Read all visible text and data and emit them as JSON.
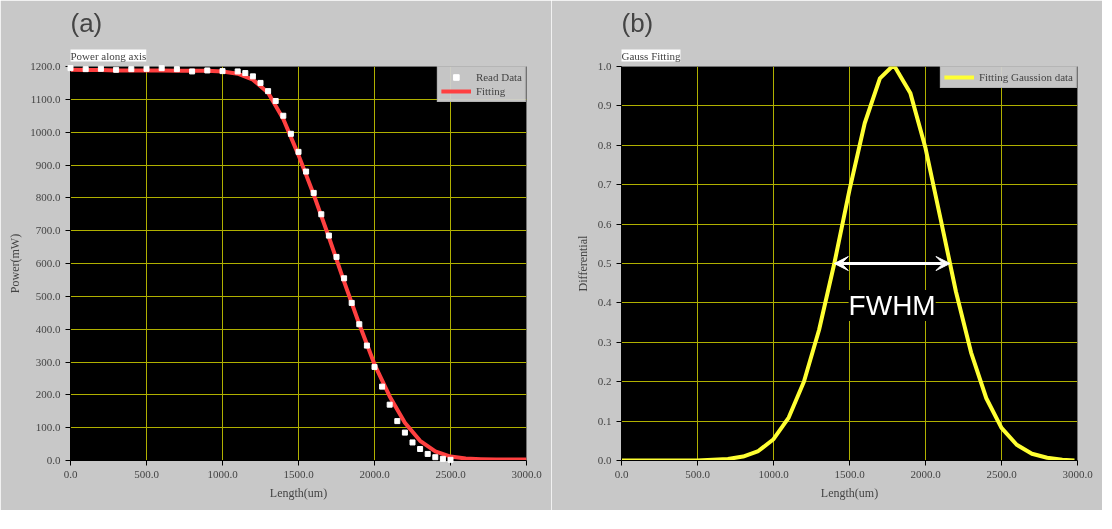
{
  "chart_data": [
    {
      "type": "line",
      "title": "Power along axis",
      "xlabel": "Length(um)",
      "ylabel": "Power(mW)",
      "annotations": [
        "(a)"
      ],
      "xlim": [
        0,
        3000
      ],
      "ylim": [
        0,
        1200
      ],
      "xticks": [
        {
          "value": 0,
          "label": "0.0"
        },
        {
          "value": 500,
          "label": "500.0"
        },
        {
          "value": 1000,
          "label": "1000.0"
        },
        {
          "value": 1500,
          "label": "1500.0"
        },
        {
          "value": 2000,
          "label": "2000.0"
        },
        {
          "value": 2500,
          "label": "2500.0"
        },
        {
          "value": 3000,
          "label": "3000.0"
        }
      ],
      "yticks": [
        {
          "value": 0,
          "label": "0.0"
        },
        {
          "value": 100,
          "label": "100.0"
        },
        {
          "value": 200,
          "label": "200.0"
        },
        {
          "value": 300,
          "label": "300.0"
        },
        {
          "value": 400,
          "label": "400.0"
        },
        {
          "value": 500,
          "label": "500.0"
        },
        {
          "value": 600,
          "label": "600.0"
        },
        {
          "value": 700,
          "label": "700.0"
        },
        {
          "value": 800,
          "label": "800.0"
        },
        {
          "value": 900,
          "label": "900.0"
        },
        {
          "value": 1000,
          "label": "1000.0"
        },
        {
          "value": 1100,
          "label": "1100.0"
        },
        {
          "value": 1200,
          "label": "1200.0"
        }
      ],
      "grid": true,
      "legend": "top right",
      "series": [
        {
          "name": "Read Data",
          "type": "scatter",
          "marker": "square",
          "color": "#ffffff",
          "x": [
            0,
            100,
            200,
            300,
            400,
            500,
            600,
            700,
            800,
            900,
            1000,
            1100,
            1150,
            1200,
            1250,
            1300,
            1350,
            1400,
            1450,
            1500,
            1550,
            1600,
            1650,
            1700,
            1750,
            1800,
            1850,
            1900,
            1950,
            2000,
            2050,
            2100,
            2150,
            2200,
            2250,
            2300,
            2350,
            2400,
            2450,
            2500
          ],
          "values": [
            1195,
            1192,
            1193,
            1190,
            1192,
            1193,
            1195,
            1192,
            1185,
            1188,
            1186,
            1185,
            1180,
            1170,
            1150,
            1125,
            1095,
            1050,
            995,
            940,
            880,
            815,
            750,
            685,
            620,
            555,
            480,
            415,
            350,
            285,
            225,
            170,
            120,
            85,
            55,
            35,
            20,
            10,
            5,
            2
          ]
        },
        {
          "name": "Fitting",
          "type": "line",
          "color": "#ff4040",
          "x": [
            0,
            100,
            200,
            300,
            400,
            500,
            600,
            700,
            800,
            900,
            1000,
            1100,
            1200,
            1300,
            1400,
            1500,
            1600,
            1700,
            1800,
            1900,
            2000,
            2100,
            2200,
            2300,
            2400,
            2500,
            2600,
            2700,
            2800,
            2900,
            3000
          ],
          "values": [
            1190,
            1189,
            1189,
            1188,
            1188,
            1188,
            1188,
            1187,
            1187,
            1187,
            1185,
            1178,
            1160,
            1120,
            1040,
            930,
            810,
            680,
            545,
            415,
            293,
            195,
            115,
            60,
            28,
            12,
            6,
            4,
            3,
            3,
            3
          ]
        }
      ]
    },
    {
      "type": "line",
      "title": "Gauss Fitting",
      "xlabel": "Length(um)",
      "ylabel": "Differential",
      "annotations": [
        "(b)",
        "FWHM"
      ],
      "xlim": [
        0,
        3000
      ],
      "ylim": [
        0,
        1
      ],
      "xticks": [
        {
          "value": 0,
          "label": "0.0"
        },
        {
          "value": 500,
          "label": "500.0"
        },
        {
          "value": 1000,
          "label": "1000.0"
        },
        {
          "value": 1500,
          "label": "1500.0"
        },
        {
          "value": 2000,
          "label": "2000.0"
        },
        {
          "value": 2500,
          "label": "2500.0"
        },
        {
          "value": 3000,
          "label": "3000.0"
        }
      ],
      "yticks": [
        {
          "value": 0,
          "label": "0.0"
        },
        0.1,
        0.2,
        0.3,
        0.4,
        0.5,
        0.6,
        0.7,
        0.8,
        0.9,
        {
          "value": 1,
          "label": "1.0"
        }
      ],
      "grid": true,
      "legend": "top right",
      "series": [
        {
          "name": "Fitting Gaussion data",
          "type": "line",
          "color": "#ffff33",
          "x": [
            0,
            500,
            700,
            800,
            900,
            1000,
            1100,
            1200,
            1300,
            1400,
            1500,
            1600,
            1700,
            1780,
            1800,
            1900,
            2000,
            2100,
            2200,
            2300,
            2400,
            2500,
            2600,
            2700,
            2800,
            2900,
            2980
          ],
          "values": [
            0,
            0,
            0.004,
            0.01,
            0.024,
            0.054,
            0.109,
            0.2,
            0.332,
            0.5,
            0.687,
            0.856,
            0.97,
            1.0,
            0.998,
            0.933,
            0.793,
            0.612,
            0.429,
            0.274,
            0.158,
            0.083,
            0.04,
            0.017,
            0.007,
            0.002,
            0
          ]
        }
      ]
    }
  ]
}
